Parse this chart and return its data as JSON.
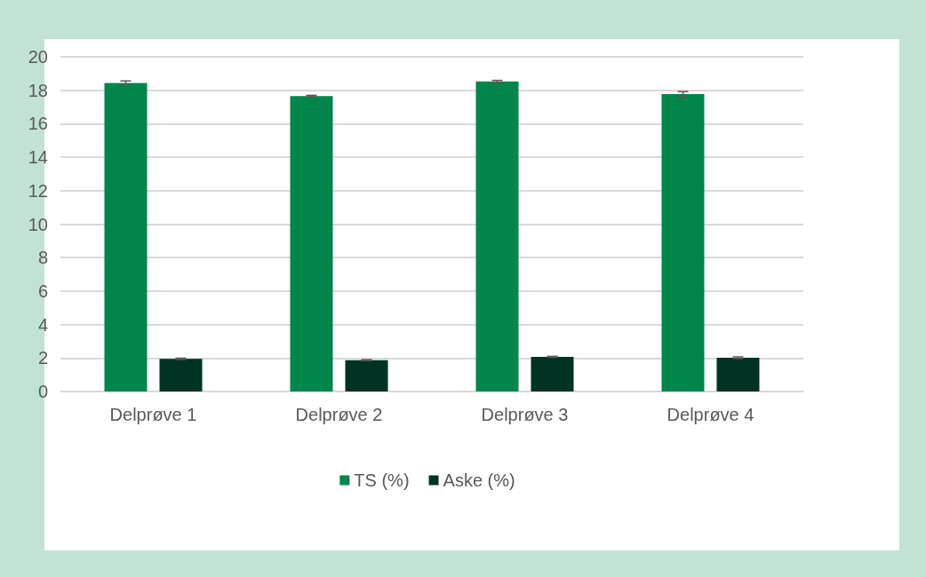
{
  "chart_data": {
    "type": "bar",
    "categories": [
      "Delprøve 1",
      "Delprøve 2",
      "Delprøve 3",
      "Delprøve 4"
    ],
    "series": [
      {
        "name": "TS (%)",
        "color": "#00854a",
        "values": [
          18.44,
          17.65,
          18.53,
          17.77
        ],
        "errors": [
          0.12,
          0.05,
          0.06,
          0.15
        ]
      },
      {
        "name": "Aske (%)",
        "color": "#003324",
        "values": [
          1.95,
          1.87,
          2.07,
          2.02
        ],
        "errors": [
          0.04,
          0.03,
          0.03,
          0.05
        ]
      }
    ],
    "ylim": [
      0,
      20
    ],
    "yticks": [
      0,
      2,
      4,
      6,
      8,
      10,
      12,
      14,
      16,
      18,
      20
    ],
    "grid": "y",
    "legend": "bottom"
  }
}
